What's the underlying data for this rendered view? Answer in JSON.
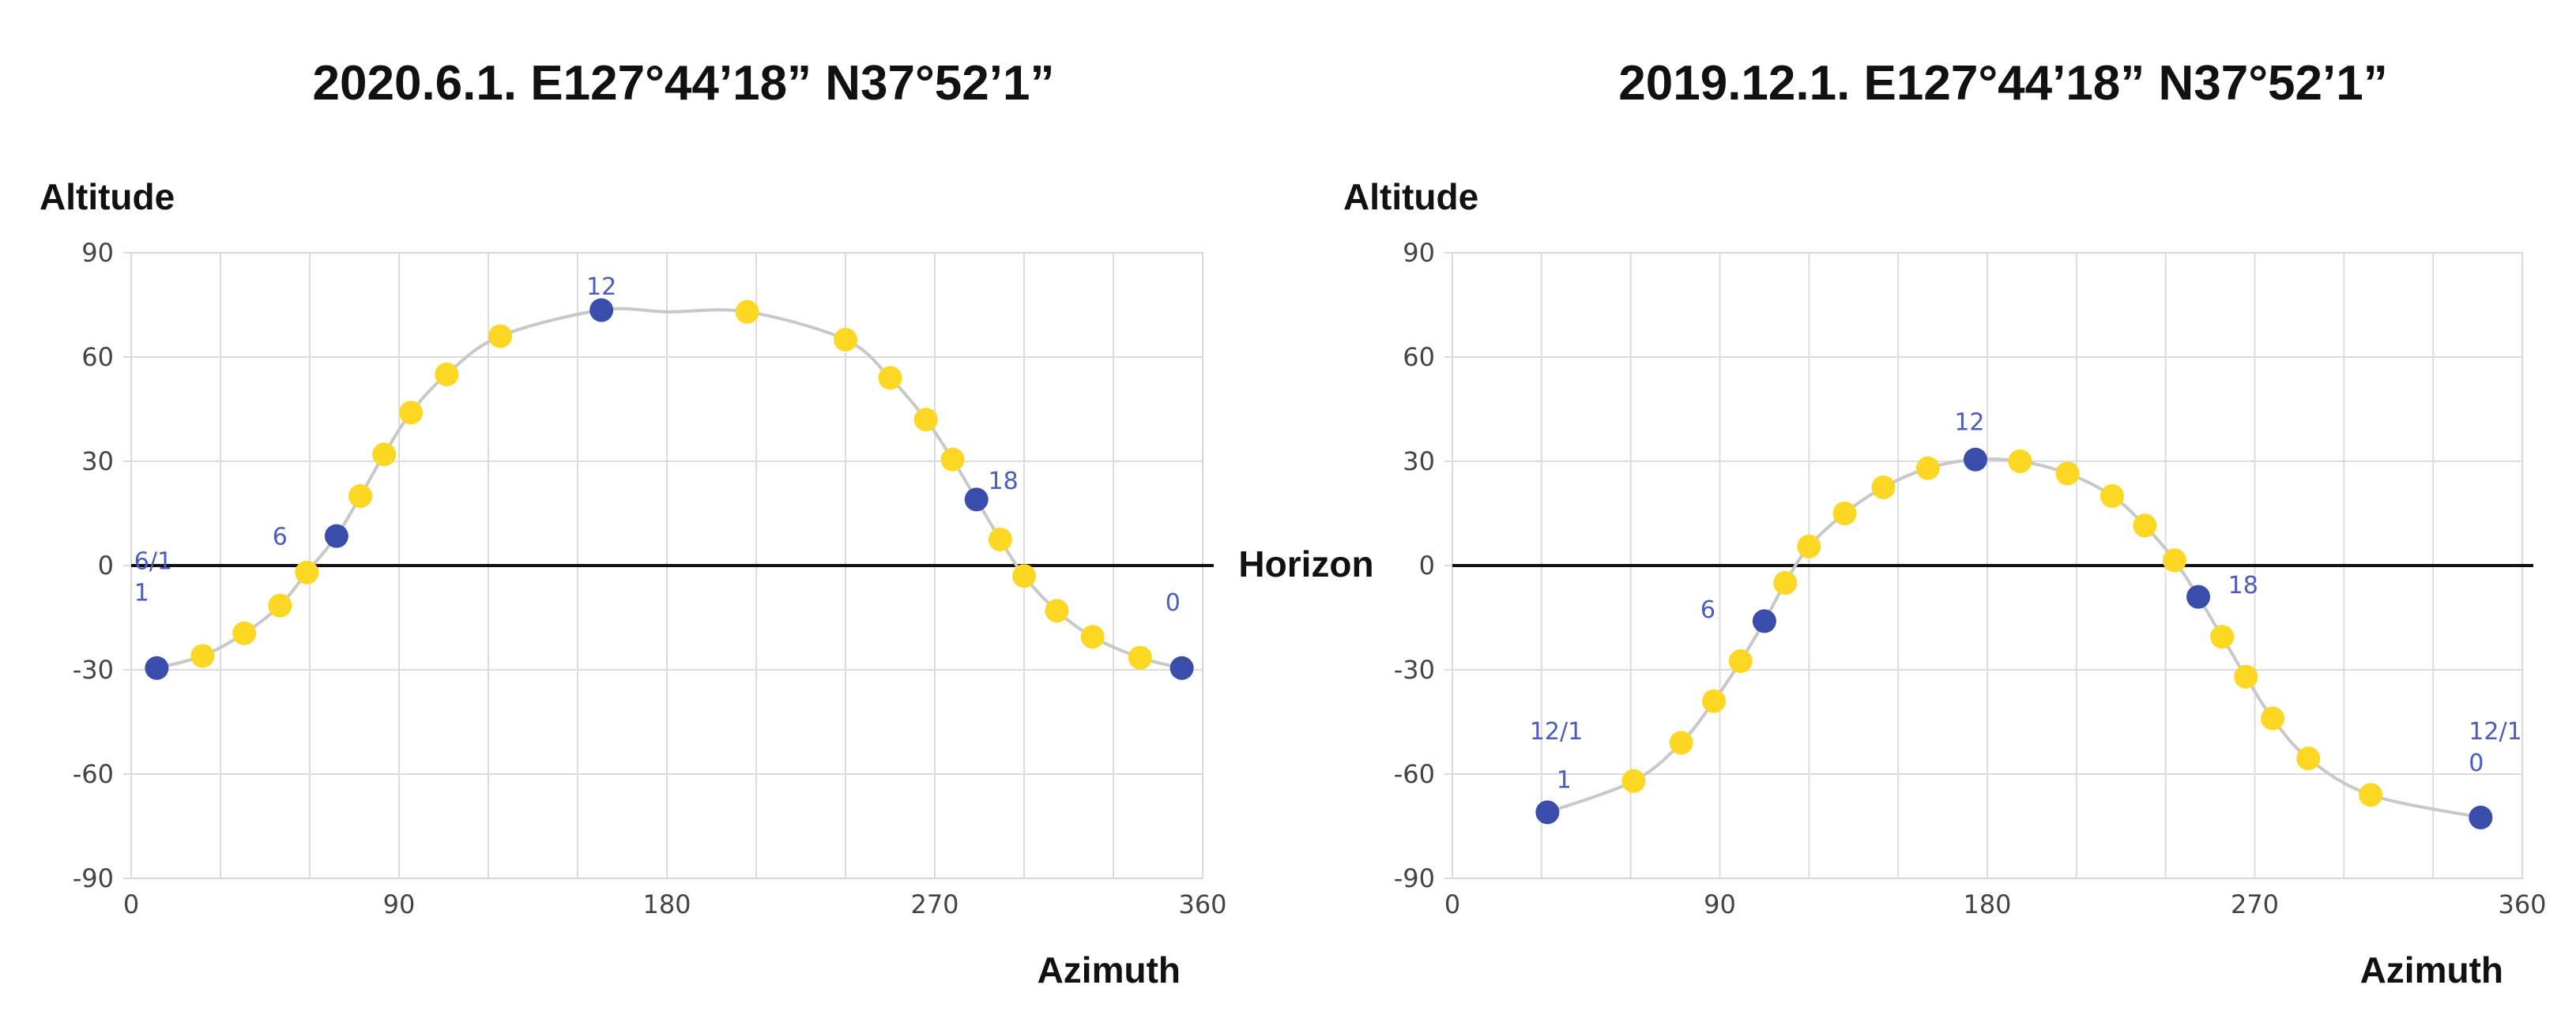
{
  "center_label": "Horizon",
  "chart_data": [
    {
      "type": "scatter",
      "title": "2020.6.1. E127°44’18” N37°52’1”",
      "xlabel": "Azimuth",
      "ylabel": "Altitude",
      "xlim": [
        0,
        360
      ],
      "ylim": [
        -90,
        90
      ],
      "xticks": [
        "0",
        "90",
        "180",
        "270",
        "360"
      ],
      "yticks": [
        "90",
        "60",
        "30",
        "0",
        "-30",
        "-60",
        "-90"
      ],
      "baseline_y": 0,
      "colors": {
        "hour": "#3b4dab",
        "other": "#fcd724",
        "path": "#c8c8c8",
        "label": "#4a5cc4"
      },
      "curve": [
        {
          "x": 8.6,
          "y": -29.5
        },
        {
          "x": 24,
          "y": -26
        },
        {
          "x": 38,
          "y": -19.5
        },
        {
          "x": 50,
          "y": -11.5
        },
        {
          "x": 59,
          "y": -2
        },
        {
          "x": 69,
          "y": 8.5
        },
        {
          "x": 77,
          "y": 20
        },
        {
          "x": 85,
          "y": 32
        },
        {
          "x": 94,
          "y": 44
        },
        {
          "x": 106,
          "y": 55
        },
        {
          "x": 124,
          "y": 66
        },
        {
          "x": 158,
          "y": 73.5
        },
        {
          "x": 180,
          "y": 73
        },
        {
          "x": 207,
          "y": 73
        },
        {
          "x": 240,
          "y": 65
        },
        {
          "x": 255,
          "y": 54
        },
        {
          "x": 267,
          "y": 42
        },
        {
          "x": 276,
          "y": 30.5
        },
        {
          "x": 284,
          "y": 19
        },
        {
          "x": 292,
          "y": 7.5
        },
        {
          "x": 300,
          "y": -3
        },
        {
          "x": 311,
          "y": -13
        },
        {
          "x": 323,
          "y": -20.5
        },
        {
          "x": 339,
          "y": -26.5
        },
        {
          "x": 353,
          "y": -29.5
        }
      ],
      "points": [
        {
          "x": 8.6,
          "y": -29.5,
          "hour": true
        },
        {
          "x": 24,
          "y": -26,
          "hour": false
        },
        {
          "x": 38,
          "y": -19.5,
          "hour": false
        },
        {
          "x": 50,
          "y": -11.5,
          "hour": false
        },
        {
          "x": 59,
          "y": -2,
          "hour": false
        },
        {
          "x": 69,
          "y": 8.5,
          "hour": true
        },
        {
          "x": 77,
          "y": 20,
          "hour": false
        },
        {
          "x": 85,
          "y": 32,
          "hour": false
        },
        {
          "x": 94,
          "y": 44,
          "hour": false
        },
        {
          "x": 106,
          "y": 55,
          "hour": false
        },
        {
          "x": 124,
          "y": 66,
          "hour": false
        },
        {
          "x": 158,
          "y": 73.5,
          "hour": true
        },
        {
          "x": 207,
          "y": 73,
          "hour": false
        },
        {
          "x": 240,
          "y": 65,
          "hour": false
        },
        {
          "x": 255,
          "y": 54,
          "hour": false
        },
        {
          "x": 267,
          "y": 42,
          "hour": false
        },
        {
          "x": 276,
          "y": 30.5,
          "hour": false
        },
        {
          "x": 284,
          "y": 19,
          "hour": true
        },
        {
          "x": 292,
          "y": 7.5,
          "hour": false
        },
        {
          "x": 300,
          "y": -3,
          "hour": false
        },
        {
          "x": 311,
          "y": -13,
          "hour": false
        },
        {
          "x": 323,
          "y": -20.5,
          "hour": false
        },
        {
          "x": 339,
          "y": -26.5,
          "hour": false
        },
        {
          "x": 353,
          "y": -29.5,
          "hour": true
        }
      ],
      "labels": [
        {
          "x": 1,
          "y": -1,
          "lines": [
            "6/1",
            "1"
          ],
          "anchor": "start"
        },
        {
          "x": 50,
          "y": 6,
          "lines": [
            "6"
          ],
          "anchor": "middle"
        },
        {
          "x": 158,
          "y": 78,
          "lines": [
            "12"
          ],
          "anchor": "middle"
        },
        {
          "x": 293,
          "y": 22,
          "lines": [
            "18"
          ],
          "anchor": "middle"
        },
        {
          "x": 350,
          "y": -13,
          "lines": [
            "0"
          ],
          "anchor": "middle"
        }
      ]
    },
    {
      "type": "scatter",
      "title": "2019.12.1. E127°44’18” N37°52’1”",
      "xlabel": "Azimuth",
      "ylabel": "Altitude",
      "xlim": [
        0,
        360
      ],
      "ylim": [
        -90,
        90
      ],
      "xticks": [
        "0",
        "90",
        "180",
        "270",
        "360"
      ],
      "yticks": [
        "90",
        "60",
        "30",
        "0",
        "-30",
        "-60",
        "-90"
      ],
      "baseline_y": 0,
      "colors": {
        "hour": "#3b4dab",
        "other": "#fcd724",
        "path": "#c8c8c8",
        "label": "#4a5cc4"
      },
      "curve": [
        {
          "x": 32,
          "y": -71
        },
        {
          "x": 61,
          "y": -62
        },
        {
          "x": 77,
          "y": -51
        },
        {
          "x": 88,
          "y": -39
        },
        {
          "x": 97,
          "y": -27.5
        },
        {
          "x": 105,
          "y": -16
        },
        {
          "x": 112,
          "y": -5
        },
        {
          "x": 120,
          "y": 5.5
        },
        {
          "x": 132,
          "y": 15
        },
        {
          "x": 145,
          "y": 22.5
        },
        {
          "x": 160,
          "y": 28
        },
        {
          "x": 176,
          "y": 30.5
        },
        {
          "x": 191,
          "y": 30
        },
        {
          "x": 207,
          "y": 26.5
        },
        {
          "x": 222,
          "y": 20
        },
        {
          "x": 233,
          "y": 11.5
        },
        {
          "x": 243,
          "y": 1.5
        },
        {
          "x": 251,
          "y": -9
        },
        {
          "x": 259,
          "y": -20.5
        },
        {
          "x": 267,
          "y": -32
        },
        {
          "x": 276,
          "y": -44
        },
        {
          "x": 288,
          "y": -55.5
        },
        {
          "x": 309,
          "y": -66
        },
        {
          "x": 346,
          "y": -72.5
        }
      ],
      "points": [
        {
          "x": 32,
          "y": -71,
          "hour": true
        },
        {
          "x": 61,
          "y": -62,
          "hour": false
        },
        {
          "x": 77,
          "y": -51,
          "hour": false
        },
        {
          "x": 88,
          "y": -39,
          "hour": false
        },
        {
          "x": 97,
          "y": -27.5,
          "hour": false
        },
        {
          "x": 105,
          "y": -16,
          "hour": true
        },
        {
          "x": 112,
          "y": -5,
          "hour": false
        },
        {
          "x": 120,
          "y": 5.5,
          "hour": false
        },
        {
          "x": 132,
          "y": 15,
          "hour": false
        },
        {
          "x": 145,
          "y": 22.5,
          "hour": false
        },
        {
          "x": 160,
          "y": 28,
          "hour": false
        },
        {
          "x": 176,
          "y": 30.5,
          "hour": true
        },
        {
          "x": 191,
          "y": 30,
          "hour": false
        },
        {
          "x": 207,
          "y": 26.5,
          "hour": false
        },
        {
          "x": 222,
          "y": 20,
          "hour": false
        },
        {
          "x": 233,
          "y": 11.5,
          "hour": false
        },
        {
          "x": 243,
          "y": 1.5,
          "hour": false
        },
        {
          "x": 251,
          "y": -9,
          "hour": true
        },
        {
          "x": 259,
          "y": -20.5,
          "hour": false
        },
        {
          "x": 267,
          "y": -32,
          "hour": false
        },
        {
          "x": 276,
          "y": -44,
          "hour": false
        },
        {
          "x": 288,
          "y": -55.5,
          "hour": false
        },
        {
          "x": 309,
          "y": -66,
          "hour": false
        },
        {
          "x": 346,
          "y": -72.5,
          "hour": true
        }
      ],
      "labels": [
        {
          "x": 26,
          "y": -50,
          "lines": [
            "12/1"
          ],
          "anchor": "start"
        },
        {
          "x": 35,
          "y": -64,
          "lines": [
            "1"
          ],
          "anchor": "start"
        },
        {
          "x": 86,
          "y": -15,
          "lines": [
            "6"
          ],
          "anchor": "middle"
        },
        {
          "x": 174,
          "y": 39,
          "lines": [
            "12"
          ],
          "anchor": "middle"
        },
        {
          "x": 261,
          "y": -8,
          "lines": [
            "18"
          ],
          "anchor": "start"
        },
        {
          "x": 342,
          "y": -50,
          "lines": [
            "12/1",
            "0"
          ],
          "anchor": "start"
        }
      ]
    }
  ]
}
